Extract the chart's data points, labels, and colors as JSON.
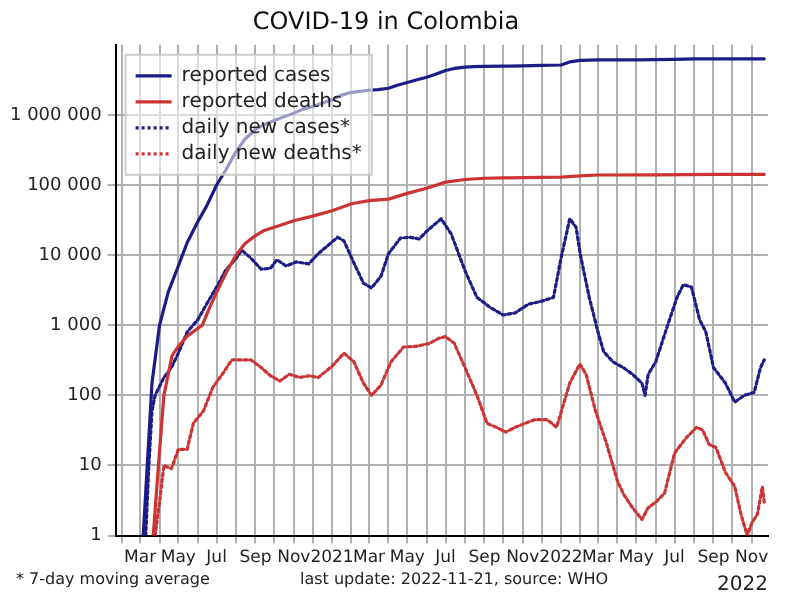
{
  "chart_data": {
    "type": "line",
    "title": "COVID-19 in Colombia",
    "log": "y",
    "grid": true,
    "legend": "top left",
    "xlim": [
      "2020-01-22",
      "2022-11-27"
    ],
    "ylim": [
      1,
      10000000
    ],
    "yticks": [
      1,
      10,
      100,
      {
        "value": 1000,
        "label": "1 000"
      },
      {
        "value": 10000,
        "label": "10 000"
      },
      {
        "value": 100000,
        "label": "100 000"
      },
      {
        "value": 1000000,
        "label": "1 000 000"
      }
    ],
    "xticks": [
      {
        "value": "2020-02-01",
        "label": null
      },
      {
        "value": "2020-03-01",
        "label": "Mar"
      },
      {
        "value": "2020-04-01",
        "label": null
      },
      {
        "value": "2020-05-01",
        "label": "May"
      },
      {
        "value": "2020-06-01",
        "label": null
      },
      {
        "value": "2020-07-01",
        "label": "Jul"
      },
      {
        "value": "2020-08-01",
        "label": null
      },
      {
        "value": "2020-09-01",
        "label": "Sep"
      },
      {
        "value": "2020-10-01",
        "label": null
      },
      {
        "value": "2020-11-01",
        "label": "Nov"
      },
      {
        "value": "2020-12-01",
        "label": null
      },
      {
        "value": "2021-01-01",
        "label": "2021"
      },
      {
        "value": "2021-02-01",
        "label": null
      },
      {
        "value": "2021-03-01",
        "label": "Mar"
      },
      {
        "value": "2021-04-01",
        "label": null
      },
      {
        "value": "2021-05-01",
        "label": "May"
      },
      {
        "value": "2021-06-01",
        "label": null
      },
      {
        "value": "2021-07-01",
        "label": "Jul"
      },
      {
        "value": "2021-08-01",
        "label": null
      },
      {
        "value": "2021-09-01",
        "label": "Sep"
      },
      {
        "value": "2021-10-01",
        "label": null
      },
      {
        "value": "2021-11-01",
        "label": "Nov"
      },
      {
        "value": "2021-12-01",
        "label": null
      },
      {
        "value": "2022-01-01",
        "label": "2022"
      },
      {
        "value": "2022-02-01",
        "label": null
      },
      {
        "value": "2022-03-01",
        "label": "Mar"
      },
      {
        "value": "2022-04-01",
        "label": null
      },
      {
        "value": "2022-05-01",
        "label": "May"
      },
      {
        "value": "2022-06-01",
        "label": null
      },
      {
        "value": "2022-07-01",
        "label": "Jul"
      },
      {
        "value": "2022-08-01",
        "label": null
      },
      {
        "value": "2022-09-01",
        "label": "Sep"
      },
      {
        "value": "2022-10-01",
        "label": null
      },
      {
        "value": "2022-11-01",
        "label": "Nov"
      }
    ],
    "annotations": [
      "* 7-day moving average",
      "last update: 2022-11-21, source: WHO",
      "2022"
    ],
    "series": [
      {
        "name": "reported cases",
        "color": "#1c1c86",
        "line_style": "solid",
        "x": [
          "2020-03-06",
          "2020-03-20",
          "2020-04-01",
          "2020-04-15",
          "2020-05-01",
          "2020-05-15",
          "2020-06-01",
          "2020-06-15",
          "2020-07-01",
          "2020-07-15",
          "2020-08-01",
          "2020-08-15",
          "2020-09-01",
          "2020-09-15",
          "2020-10-01",
          "2020-10-15",
          "2020-11-01",
          "2020-11-15",
          "2020-12-01",
          "2020-12-15",
          "2021-01-01",
          "2021-01-15",
          "2021-02-01",
          "2021-03-01",
          "2021-03-15",
          "2021-04-01",
          "2021-04-15",
          "2021-05-01",
          "2021-05-15",
          "2021-06-01",
          "2021-06-15",
          "2021-07-01",
          "2021-07-15",
          "2021-08-01",
          "2021-08-15",
          "2021-09-01",
          "2021-10-01",
          "2021-11-01",
          "2021-12-01",
          "2022-01-01",
          "2022-01-15",
          "2022-02-01",
          "2022-02-15",
          "2022-03-01",
          "2022-05-01",
          "2022-07-01",
          "2022-08-01",
          "2022-09-01",
          "2022-11-21"
        ],
        "values": [
          1,
          150,
          1000,
          3000,
          7000,
          15000,
          30000,
          50000,
          100000,
          160000,
          300000,
          450000,
          620000,
          730000,
          830000,
          930000,
          1060000,
          1200000,
          1320000,
          1450000,
          1640000,
          1900000,
          2100000,
          2250000,
          2300000,
          2400000,
          2650000,
          2900000,
          3150000,
          3450000,
          3800000,
          4300000,
          4600000,
          4800000,
          4870000,
          4920000,
          4960000,
          5010000,
          5080000,
          5150000,
          5700000,
          6000000,
          6050000,
          6080000,
          6100000,
          6200000,
          6280000,
          6300000,
          6310000
        ]
      },
      {
        "name": "reported deaths",
        "color": "#cc3333",
        "line_style": "solid",
        "x": [
          "2020-03-22",
          "2020-04-01",
          "2020-04-08",
          "2020-04-21",
          "2020-05-01",
          "2020-05-15",
          "2020-06-08",
          "2020-06-20",
          "2020-07-05",
          "2020-07-20",
          "2020-08-01",
          "2020-08-15",
          "2020-09-01",
          "2020-09-15",
          "2020-10-01",
          "2020-11-01",
          "2020-12-01",
          "2021-01-01",
          "2021-02-01",
          "2021-03-01",
          "2021-04-01",
          "2021-05-01",
          "2021-06-01",
          "2021-07-01",
          "2021-08-01",
          "2021-09-01",
          "2021-10-01",
          "2021-12-01",
          "2022-01-01",
          "2022-02-01",
          "2022-03-01",
          "2022-06-01",
          "2022-09-01",
          "2022-11-21"
        ],
        "values": [
          1,
          16,
          100,
          370,
          500,
          700,
          1000,
          1800,
          3500,
          6500,
          10000,
          14500,
          19000,
          22500,
          25000,
          31000,
          36000,
          43000,
          54000,
          60000,
          63000,
          76000,
          90000,
          110000,
          120000,
          125000,
          126500,
          128500,
          130000,
          135000,
          139000,
          139800,
          141500,
          141900
        ]
      },
      {
        "name": "daily new cases*",
        "color": "#1c1c86",
        "line_style": "dotted",
        "x": [
          "2020-03-10",
          "2020-03-15",
          "2020-03-20",
          "2020-03-25",
          "2020-04-08",
          "2020-04-20",
          "2020-05-01",
          "2020-05-15",
          "2020-06-01",
          "2020-06-15",
          "2020-07-01",
          "2020-07-15",
          "2020-08-01",
          "2020-08-10",
          "2020-08-25",
          "2020-09-10",
          "2020-09-25",
          "2020-10-05",
          "2020-10-20",
          "2020-11-05",
          "2020-11-25",
          "2020-12-10",
          "2021-01-10",
          "2021-01-20",
          "2021-02-05",
          "2021-02-20",
          "2021-03-05",
          "2021-03-20",
          "2021-04-01",
          "2021-04-20",
          "2021-05-05",
          "2021-05-20",
          "2021-06-01",
          "2021-06-24",
          "2021-07-10",
          "2021-08-01",
          "2021-08-20",
          "2021-09-10",
          "2021-10-01",
          "2021-10-20",
          "2021-11-10",
          "2021-12-01",
          "2021-12-20",
          "2022-01-01",
          "2022-01-15",
          "2022-01-25",
          "2022-02-01",
          "2022-02-15",
          "2022-03-01",
          "2022-03-10",
          "2022-03-25",
          "2022-04-10",
          "2022-04-25",
          "2022-05-10",
          "2022-05-15",
          "2022-05-20",
          "2022-06-01",
          "2022-06-20",
          "2022-07-05",
          "2022-07-15",
          "2022-07-28",
          "2022-08-10",
          "2022-08-20",
          "2022-09-01",
          "2022-09-20",
          "2022-10-05",
          "2022-10-20",
          "2022-11-05",
          "2022-11-15",
          "2022-11-21"
        ],
        "values": [
          1,
          10,
          60,
          100,
          180,
          250,
          400,
          800,
          1200,
          2000,
          3500,
          6000,
          9000,
          11800,
          9000,
          6300,
          6500,
          8600,
          7000,
          8000,
          7500,
          10500,
          18000,
          16000,
          7700,
          4000,
          3400,
          5000,
          10500,
          17500,
          18000,
          17000,
          22000,
          33000,
          20000,
          6000,
          2500,
          1800,
          1400,
          1500,
          2000,
          2200,
          2500,
          9000,
          33000,
          25000,
          10000,
          2500,
          800,
          420,
          300,
          250,
          200,
          150,
          100,
          200,
          300,
          1000,
          2500,
          3800,
          3500,
          1200,
          800,
          250,
          150,
          80,
          100,
          110,
          250,
          320
        ]
      },
      {
        "name": "daily new deaths*",
        "color": "#cc3333",
        "line_style": "dotted",
        "x": [
          "2020-03-25",
          "2020-04-01",
          "2020-04-08",
          "2020-04-20",
          "2020-05-01",
          "2020-05-15",
          "2020-05-25",
          "2020-06-10",
          "2020-06-25",
          "2020-07-10",
          "2020-07-25",
          "2020-08-10",
          "2020-08-25",
          "2020-09-10",
          "2020-09-25",
          "2020-10-10",
          "2020-10-25",
          "2020-11-10",
          "2020-11-25",
          "2020-12-10",
          "2021-01-01",
          "2021-01-20",
          "2021-02-05",
          "2021-02-20",
          "2021-03-05",
          "2021-03-20",
          "2021-04-05",
          "2021-04-25",
          "2021-05-15",
          "2021-06-05",
          "2021-06-20",
          "2021-07-01",
          "2021-07-15",
          "2021-08-01",
          "2021-08-20",
          "2021-09-05",
          "2021-09-20",
          "2021-10-05",
          "2021-10-20",
          "2021-11-05",
          "2021-11-20",
          "2021-12-10",
          "2021-12-25",
          "2022-01-15",
          "2022-01-31",
          "2022-02-10",
          "2022-02-25",
          "2022-03-15",
          "2022-04-01",
          "2022-04-10",
          "2022-04-25",
          "2022-05-10",
          "2022-05-20",
          "2022-06-01",
          "2022-06-15",
          "2022-07-01",
          "2022-07-20",
          "2022-08-05",
          "2022-08-15",
          "2022-08-25",
          "2022-09-05",
          "2022-09-20",
          "2022-10-05",
          "2022-10-15",
          "2022-10-25",
          "2022-11-01",
          "2022-11-10",
          "2022-11-18",
          "2022-11-21"
        ],
        "values": [
          1,
          3,
          10,
          9,
          17,
          17,
          40,
          60,
          130,
          200,
          320,
          320,
          320,
          250,
          190,
          160,
          200,
          180,
          190,
          180,
          260,
          400,
          300,
          150,
          100,
          140,
          300,
          490,
          500,
          550,
          650,
          690,
          550,
          250,
          100,
          40,
          35,
          30,
          35,
          40,
          45,
          45,
          35,
          150,
          280,
          200,
          60,
          20,
          6,
          4,
          2.5,
          1.7,
          2.5,
          3,
          4,
          15,
          25,
          35,
          32,
          20,
          18,
          8,
          5,
          2,
          1,
          1.5,
          2,
          5,
          3
        ]
      }
    ]
  }
}
